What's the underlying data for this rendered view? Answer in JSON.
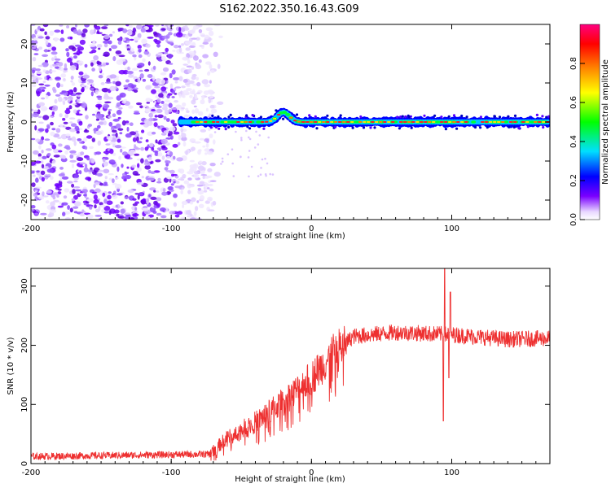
{
  "title": "S162.2022.350.16.43.G09",
  "chart_data": [
    {
      "type": "heatmap",
      "name": "spectrogram",
      "xlabel": "Height of straight line (km)",
      "ylabel": "Frequency (Hz)",
      "xlim": [
        -200,
        170
      ],
      "ylim": [
        -25,
        25
      ],
      "xticks": [
        "-200",
        "-100",
        "0",
        "100"
      ],
      "xtick_values": [
        -200,
        -100,
        0,
        100
      ],
      "yticks": [
        "-20",
        "-10",
        "0",
        "10",
        "20"
      ],
      "ytick_values": [
        -20,
        -10,
        0,
        10,
        20
      ],
      "noise_region_x": [
        -200,
        -70
      ],
      "signal_start_x": -93,
      "signal_frequency_hz": 0,
      "signal_bump": {
        "x": -20,
        "frequency_hz": 2.5
      },
      "colorbar": {
        "label": "Normalized spectral amplitude",
        "ticks": [
          "0.0",
          "0.2",
          "0.4",
          "0.6",
          "0.8"
        ],
        "tick_values": [
          0,
          0.2,
          0.4,
          0.6,
          0.8
        ],
        "range": [
          0,
          1
        ],
        "colors": [
          "#e8d8ff",
          "#7a00ff",
          "#0000ff",
          "#00e0ff",
          "#00ff00",
          "#ffff00",
          "#ff8000",
          "#ff0000",
          "#ff0080"
        ]
      }
    },
    {
      "type": "line",
      "name": "snr",
      "xlabel": "Height of straight line (km)",
      "ylabel": "SNR (10 * v/v)",
      "xlim": [
        -200,
        170
      ],
      "ylim": [
        0,
        330
      ],
      "xticks": [
        "-200",
        "-100",
        "0",
        "100"
      ],
      "xtick_values": [
        -200,
        -100,
        0,
        100
      ],
      "yticks": [
        "0",
        "100",
        "200",
        "300"
      ],
      "ytick_values": [
        0,
        100,
        200,
        300
      ],
      "color": "#ee3030",
      "trend": [
        {
          "x": -200,
          "y": 12
        },
        {
          "x": -72,
          "y": 16
        },
        {
          "x": -62,
          "y": 40
        },
        {
          "x": -40,
          "y": 70
        },
        {
          "x": -20,
          "y": 105
        },
        {
          "x": 0,
          "y": 145
        },
        {
          "x": 15,
          "y": 185
        },
        {
          "x": 30,
          "y": 215
        },
        {
          "x": 60,
          "y": 222
        },
        {
          "x": 100,
          "y": 218
        },
        {
          "x": 140,
          "y": 210
        },
        {
          "x": 170,
          "y": 212
        }
      ],
      "spikes": [
        {
          "x": 94,
          "y": 72
        },
        {
          "x": 95,
          "y": 330
        },
        {
          "x": 98,
          "y": 145
        },
        {
          "x": 99,
          "y": 290
        }
      ]
    }
  ]
}
